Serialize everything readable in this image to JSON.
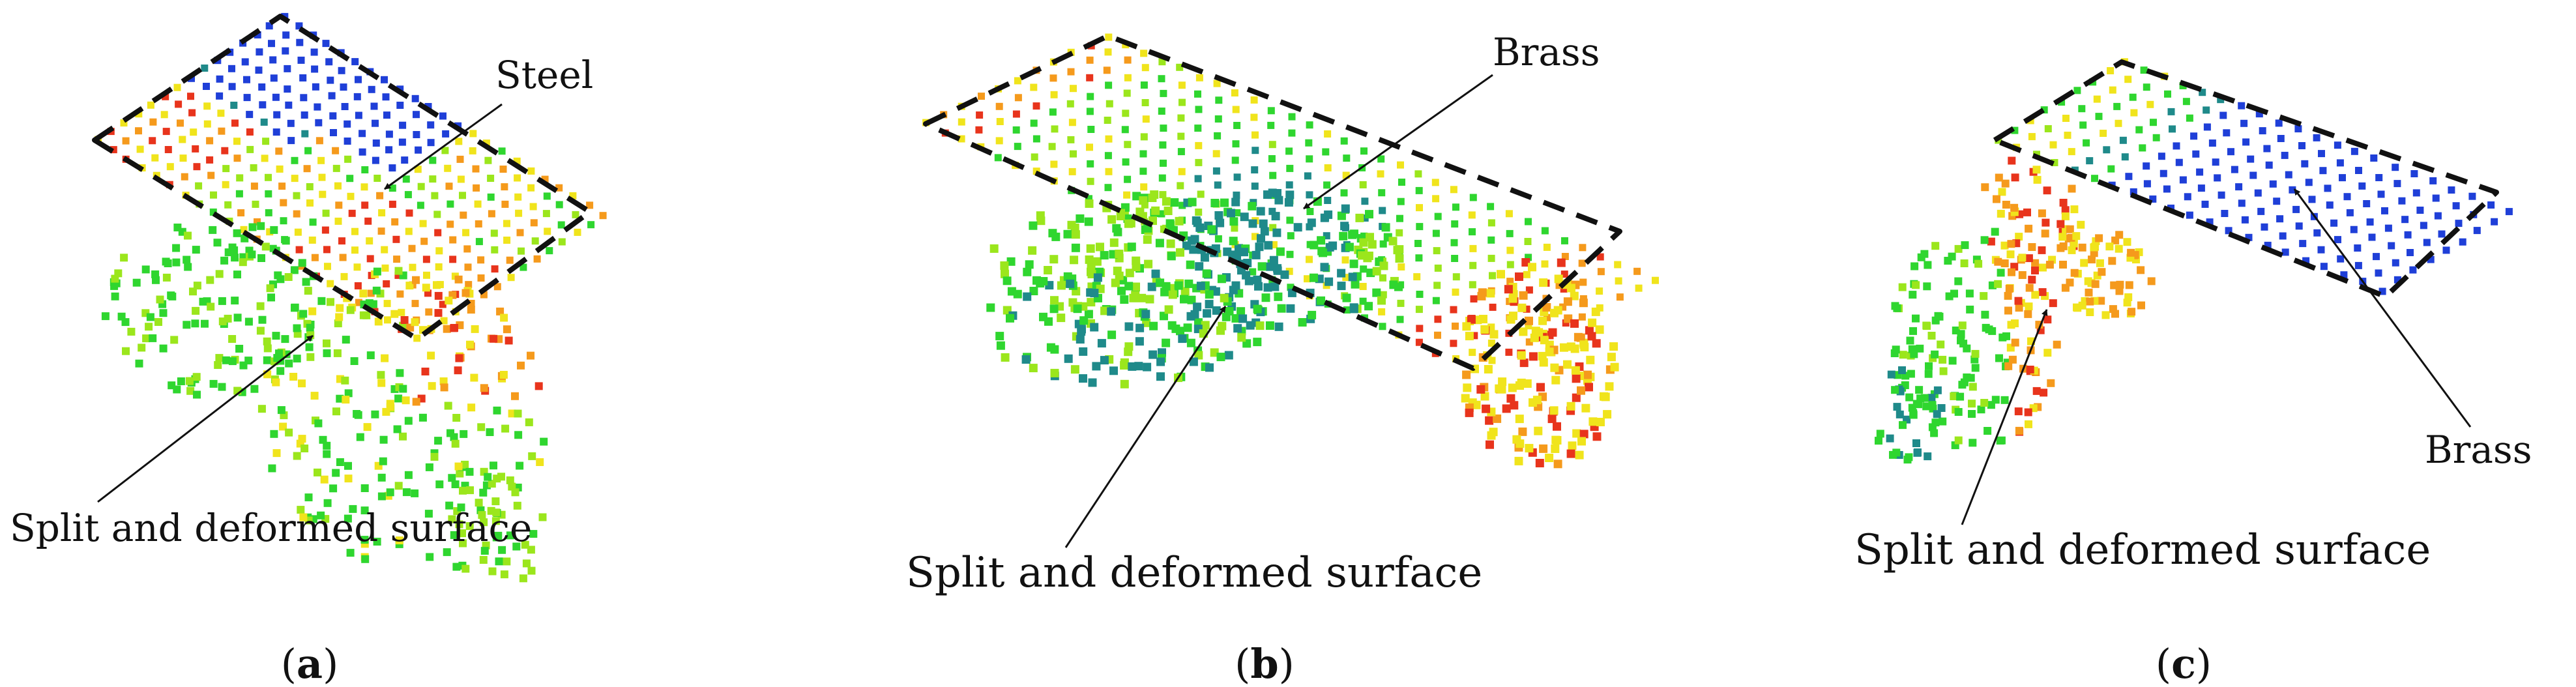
{
  "panels": [
    {
      "id": "a",
      "label_open": "(",
      "label_letter": "a",
      "label_close": ")",
      "annotations": [
        "Steel",
        "Split and deformed surface"
      ]
    },
    {
      "id": "b",
      "label_open": "(",
      "label_letter": "b",
      "label_close": ")",
      "annotations": [
        "Brass",
        "Split and deformed surface"
      ]
    },
    {
      "id": "c",
      "label_open": "(",
      "label_letter": "c",
      "label_close": ")",
      "annotations": [
        "Brass",
        "Split and deformed surface"
      ]
    }
  ],
  "colors": {
    "blue": "#1f3fd8",
    "teal": "#1f8a8a",
    "green": "#2fd62f",
    "lime": "#9be61c",
    "yellow": "#f0e41c",
    "orange": "#f59a1c",
    "red": "#e8341c",
    "outline": "#111111"
  }
}
